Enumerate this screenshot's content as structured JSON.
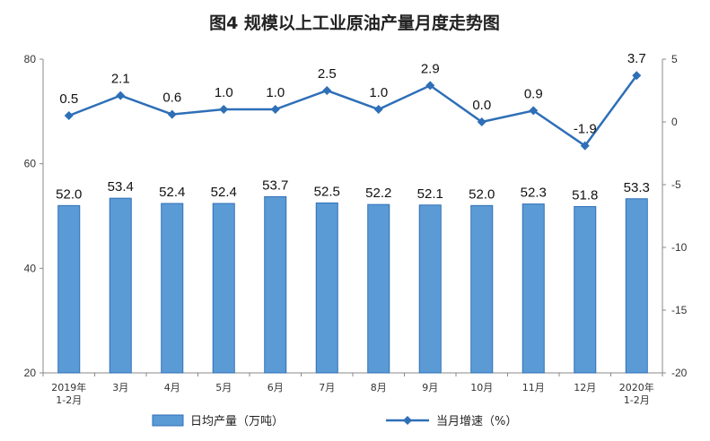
{
  "chart_data": {
    "type": "bar+line",
    "title": "图4  规模以上工业原油产量月度走势图",
    "categories": [
      [
        "2019年",
        "1-2月"
      ],
      [
        "3月"
      ],
      [
        "4月"
      ],
      [
        "5月"
      ],
      [
        "6月"
      ],
      [
        "7月"
      ],
      [
        "8月"
      ],
      [
        "9月"
      ],
      [
        "10月"
      ],
      [
        "11月"
      ],
      [
        "12月"
      ],
      [
        "2020年",
        "1-2月"
      ]
    ],
    "series": [
      {
        "name": "日均产量（万吨",
        "name_suffix": "）",
        "type": "bar",
        "axis": "left",
        "color": "#5b9bd5",
        "values": [
          52.0,
          53.4,
          52.4,
          52.4,
          53.7,
          52.5,
          52.2,
          52.1,
          52.0,
          52.3,
          51.8,
          53.3
        ],
        "labels": [
          "52.0",
          "53.4",
          "52.4",
          "52.4",
          "53.7",
          "52.5",
          "52.2",
          "52.1",
          "52.0",
          "52.3",
          "51.8",
          "53.3"
        ]
      },
      {
        "name": "当月增速（%）",
        "type": "line",
        "axis": "right",
        "color": "#2e6fb7",
        "values": [
          0.5,
          2.1,
          0.6,
          1.0,
          1.0,
          2.5,
          1.0,
          2.9,
          0.0,
          0.9,
          -1.9,
          3.7
        ],
        "labels": [
          "0.5",
          "2.1",
          "0.6",
          "1.0",
          "1.0",
          "2.5",
          "1.0",
          "2.9",
          "0.0",
          "0.9",
          "-1.9",
          "3.7"
        ]
      }
    ],
    "left_axis": {
      "ylim": [
        20,
        80
      ],
      "ticks": [
        "20",
        "40",
        "60",
        "80"
      ],
      "tick_values": [
        20,
        40,
        60,
        80
      ]
    },
    "right_axis": {
      "ylim": [
        -20,
        5
      ],
      "ticks": [
        "-20",
        "-15",
        "-10",
        "-5",
        "0",
        "5"
      ],
      "tick_values": [
        -20,
        -15,
        -10,
        -5,
        0,
        5
      ]
    },
    "grid": false,
    "legend_position": "bottom"
  }
}
